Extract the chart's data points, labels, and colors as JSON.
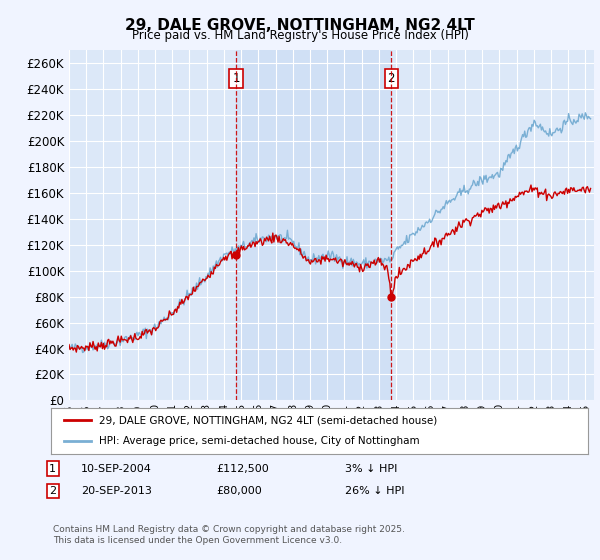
{
  "title": "29, DALE GROVE, NOTTINGHAM, NG2 4LT",
  "subtitle": "Price paid vs. HM Land Registry's House Price Index (HPI)",
  "ylim": [
    0,
    270000
  ],
  "yticks": [
    0,
    20000,
    40000,
    60000,
    80000,
    100000,
    120000,
    140000,
    160000,
    180000,
    200000,
    220000,
    240000,
    260000
  ],
  "xlim_start": 1995.0,
  "xlim_end": 2025.5,
  "background_color": "#f0f4ff",
  "plot_bg_color": "#dce8f8",
  "shade_color": "#ccddf5",
  "grid_color": "#ffffff",
  "sale1_date": 2004.71,
  "sale1_price": 112500,
  "sale2_date": 2013.72,
  "sale2_price": 80000,
  "legend_label_red": "29, DALE GROVE, NOTTINGHAM, NG2 4LT (semi-detached house)",
  "legend_label_blue": "HPI: Average price, semi-detached house, City of Nottingham",
  "footer": "Contains HM Land Registry data © Crown copyright and database right 2025.\nThis data is licensed under the Open Government Licence v3.0.",
  "sale_line_color": "#cc0000",
  "hpi_line_color": "#7aafd4",
  "sale_dot_color": "#cc0000",
  "vline_color": "#cc0000",
  "label_box_color": "#cc0000"
}
